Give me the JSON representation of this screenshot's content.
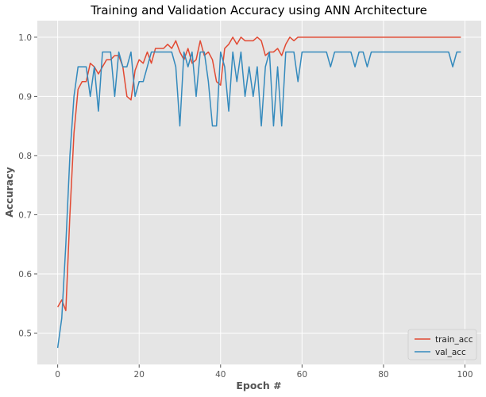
{
  "chart_data": {
    "type": "line",
    "title": "Training and Validation Accuracy using ANN Architecture",
    "xlabel": "Epoch #",
    "ylabel": "Accuracy",
    "xlim": [
      -5,
      104
    ],
    "ylim": [
      0.447,
      1.028
    ],
    "x_ticks": [
      0,
      20,
      40,
      60,
      80,
      100
    ],
    "x_tick_labels": [
      "0",
      "20",
      "40",
      "60",
      "80",
      "100"
    ],
    "y_ticks": [
      0.5,
      0.6,
      0.7,
      0.8,
      0.9,
      1.0
    ],
    "y_tick_labels": [
      "0.5",
      "0.6",
      "0.7",
      "0.8",
      "0.9",
      "1.0"
    ],
    "grid": true,
    "legend": "lower-right",
    "background": "#e5e5e5",
    "series": [
      {
        "name": "train_acc",
        "color": "#e24a33",
        "x": [
          0,
          1,
          2,
          3,
          4,
          5,
          6,
          7,
          8,
          9,
          10,
          11,
          12,
          13,
          14,
          15,
          16,
          17,
          18,
          19,
          20,
          21,
          22,
          23,
          24,
          25,
          26,
          27,
          28,
          29,
          30,
          31,
          32,
          33,
          34,
          35,
          36,
          37,
          38,
          39,
          40,
          41,
          42,
          43,
          44,
          45,
          46,
          47,
          48,
          49,
          50,
          51,
          52,
          53,
          54,
          55,
          56,
          57,
          58,
          59,
          60,
          61,
          62,
          63,
          64,
          65,
          66,
          67,
          68,
          69,
          70,
          71,
          72,
          73,
          74,
          75,
          76,
          77,
          78,
          79,
          80,
          81,
          82,
          83,
          84,
          85,
          86,
          87,
          88,
          89,
          90,
          91,
          92,
          93,
          94,
          95,
          96,
          97,
          98,
          99
        ],
        "values": [
          0.544,
          0.556,
          0.538,
          0.7,
          0.838,
          0.912,
          0.925,
          0.925,
          0.956,
          0.95,
          0.938,
          0.95,
          0.962,
          0.962,
          0.969,
          0.969,
          0.95,
          0.9,
          0.894,
          0.944,
          0.962,
          0.956,
          0.975,
          0.956,
          0.981,
          0.981,
          0.981,
          0.988,
          0.981,
          0.994,
          0.975,
          0.962,
          0.981,
          0.956,
          0.962,
          0.994,
          0.969,
          0.975,
          0.962,
          0.925,
          0.919,
          0.981,
          0.988,
          1.0,
          0.988,
          1.0,
          0.994,
          0.994,
          0.994,
          1.0,
          0.994,
          0.969,
          0.975,
          0.975,
          0.981,
          0.969,
          0.988,
          1.0,
          0.994,
          1.0,
          1.0,
          1.0,
          1.0,
          1.0,
          1.0,
          1.0,
          1.0,
          1.0,
          1.0,
          1.0,
          1.0,
          1.0,
          1.0,
          1.0,
          1.0,
          1.0,
          1.0,
          1.0,
          1.0,
          1.0,
          1.0,
          1.0,
          1.0,
          1.0,
          1.0,
          1.0,
          1.0,
          1.0,
          1.0,
          1.0,
          1.0,
          1.0,
          1.0,
          1.0,
          1.0,
          1.0,
          1.0,
          1.0,
          1.0,
          1.0
        ]
      },
      {
        "name": "val_acc",
        "color": "#348abd",
        "x": [
          0,
          1,
          2,
          3,
          4,
          5,
          6,
          7,
          8,
          9,
          10,
          11,
          12,
          13,
          14,
          15,
          16,
          17,
          18,
          19,
          20,
          21,
          22,
          23,
          24,
          25,
          26,
          27,
          28,
          29,
          30,
          31,
          32,
          33,
          34,
          35,
          36,
          37,
          38,
          39,
          40,
          41,
          42,
          43,
          44,
          45,
          46,
          47,
          48,
          49,
          50,
          51,
          52,
          53,
          54,
          55,
          56,
          57,
          58,
          59,
          60,
          61,
          62,
          63,
          64,
          65,
          66,
          67,
          68,
          69,
          70,
          71,
          72,
          73,
          74,
          75,
          76,
          77,
          78,
          79,
          80,
          81,
          82,
          83,
          84,
          85,
          86,
          87,
          88,
          89,
          90,
          91,
          92,
          93,
          94,
          95,
          96,
          97,
          98,
          99
        ],
        "values": [
          0.475,
          0.525,
          0.65,
          0.8,
          0.9,
          0.95,
          0.95,
          0.95,
          0.9,
          0.95,
          0.875,
          0.975,
          0.975,
          0.975,
          0.9,
          0.975,
          0.95,
          0.95,
          0.975,
          0.9,
          0.925,
          0.925,
          0.95,
          0.975,
          0.975,
          0.975,
          0.975,
          0.975,
          0.975,
          0.95,
          0.85,
          0.975,
          0.95,
          0.975,
          0.9,
          0.975,
          0.975,
          0.925,
          0.85,
          0.85,
          0.975,
          0.95,
          0.875,
          0.975,
          0.925,
          0.975,
          0.9,
          0.95,
          0.9,
          0.95,
          0.85,
          0.95,
          0.975,
          0.85,
          0.95,
          0.85,
          0.975,
          0.975,
          0.975,
          0.925,
          0.975,
          0.975,
          0.975,
          0.975,
          0.975,
          0.975,
          0.975,
          0.95,
          0.975,
          0.975,
          0.975,
          0.975,
          0.975,
          0.95,
          0.975,
          0.975,
          0.95,
          0.975,
          0.975,
          0.975,
          0.975,
          0.975,
          0.975,
          0.975,
          0.975,
          0.975,
          0.975,
          0.975,
          0.975,
          0.975,
          0.975,
          0.975,
          0.975,
          0.975,
          0.975,
          0.975,
          0.975,
          0.95,
          0.975,
          0.975
        ]
      }
    ]
  }
}
